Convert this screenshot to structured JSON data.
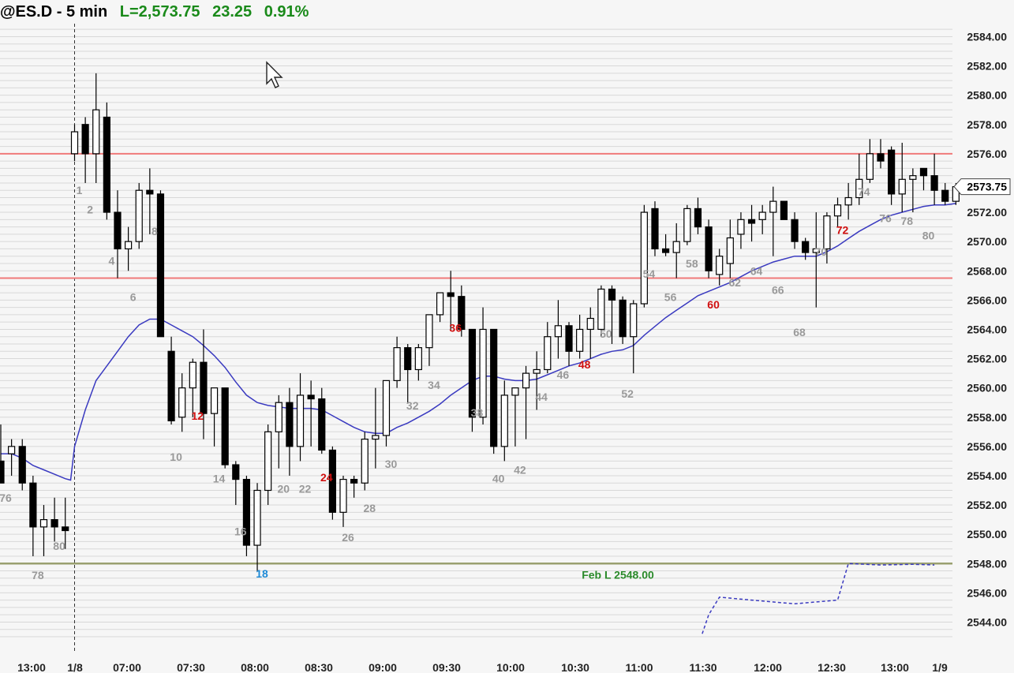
{
  "header": {
    "symbol_label": "@ES.D - 5 min",
    "last_label": "L=2,573.75",
    "change": "23.25",
    "change_pct": "0.91%"
  },
  "colors": {
    "background": "#f6f6f6",
    "grid": "#d8d8d8",
    "bull_fill": "#ffffff",
    "bear_fill": "#000000",
    "ema": "#3a3ac0",
    "resistance": "#f07a7a",
    "support": "#9aa070",
    "label_gray": "#999999",
    "label_red": "#d01010",
    "label_blue": "#1e8ad6",
    "header_green": "#1a8a1a",
    "support_text": "#2a8a2a"
  },
  "icons": {
    "cursor": "mouse-pointer-icon"
  },
  "chart_data": {
    "type": "candlestick",
    "ylim": [
      2542.5,
      2586.0
    ],
    "y_ticks": [
      "2584.00",
      "2582.00",
      "2580.00",
      "2578.00",
      "2576.00",
      "2574.00",
      "2572.00",
      "2570.00",
      "2568.00",
      "2566.00",
      "2564.00",
      "2562.00",
      "2560.00",
      "2558.00",
      "2556.00",
      "2554.00",
      "2552.00",
      "2550.00",
      "2548.00",
      "2546.00",
      "2544.00"
    ],
    "x_ticks": [
      "13:00",
      "1/8",
      "07:00",
      "07:30",
      "08:00",
      "08:30",
      "09:00",
      "09:30",
      "10:00",
      "10:30",
      "11:00",
      "11:30",
      "12:00",
      "12:30",
      "13:00",
      "1/9"
    ],
    "last_price_label": "2573.75",
    "prev_day_candles": [
      {
        "o": 2555.0,
        "h": 2557.5,
        "l": 2553.5,
        "c": 2553.5
      },
      {
        "o": 2555.5,
        "h": 2556.5,
        "l": 2554.0,
        "c": 2556.0
      },
      {
        "o": 2556.0,
        "h": 2556.5,
        "l": 2553.0,
        "c": 2553.5
      },
      {
        "o": 2553.5,
        "h": 2554.0,
        "l": 2548.5,
        "c": 2550.5
      },
      {
        "o": 2550.5,
        "h": 2552.0,
        "l": 2548.5,
        "c": 2551.0
      },
      {
        "o": 2551.0,
        "h": 2552.5,
        "l": 2549.5,
        "c": 2550.5
      },
      {
        "o": 2550.5,
        "h": 2552.5,
        "l": 2549.0,
        "c": 2550.25
      }
    ],
    "candles": [
      {
        "o": 2576.0,
        "h": 2578.0,
        "l": 2575.5,
        "c": 2577.5
      },
      {
        "o": 2578.0,
        "h": 2578.5,
        "l": 2574.0,
        "c": 2576.0
      },
      {
        "o": 2576.0,
        "h": 2581.5,
        "l": 2574.0,
        "c": 2579.0
      },
      {
        "o": 2578.5,
        "h": 2579.5,
        "l": 2571.5,
        "c": 2572.0
      },
      {
        "o": 2572.0,
        "h": 2573.5,
        "l": 2567.5,
        "c": 2569.5
      },
      {
        "o": 2569.5,
        "h": 2571.0,
        "l": 2568.0,
        "c": 2570.0
      },
      {
        "o": 2570.0,
        "h": 2574.0,
        "l": 2569.5,
        "c": 2573.5
      },
      {
        "o": 2573.5,
        "h": 2575.0,
        "l": 2570.5,
        "c": 2573.25
      },
      {
        "o": 2573.25,
        "h": 2573.5,
        "l": 2563.5,
        "c": 2563.5
      },
      {
        "o": 2562.5,
        "h": 2563.5,
        "l": 2557.5,
        "c": 2557.75
      },
      {
        "o": 2558.0,
        "h": 2561.0,
        "l": 2557.0,
        "c": 2560.0
      },
      {
        "o": 2560.0,
        "h": 2562.0,
        "l": 2558.0,
        "c": 2561.75
      },
      {
        "o": 2561.75,
        "h": 2564.0,
        "l": 2556.5,
        "c": 2558.25
      },
      {
        "o": 2558.25,
        "h": 2560.0,
        "l": 2556.0,
        "c": 2560.0
      },
      {
        "o": 2560.0,
        "h": 2560.0,
        "l": 2554.5,
        "c": 2554.75
      },
      {
        "o": 2554.75,
        "h": 2555.0,
        "l": 2552.0,
        "c": 2553.75
      },
      {
        "o": 2553.75,
        "h": 2554.0,
        "l": 2548.5,
        "c": 2549.25
      },
      {
        "o": 2549.25,
        "h": 2553.5,
        "l": 2547.5,
        "c": 2553.0
      },
      {
        "o": 2553.0,
        "h": 2557.5,
        "l": 2552.0,
        "c": 2557.0
      },
      {
        "o": 2557.0,
        "h": 2559.5,
        "l": 2554.5,
        "c": 2559.0
      },
      {
        "o": 2559.0,
        "h": 2560.0,
        "l": 2554.0,
        "c": 2556.0
      },
      {
        "o": 2556.0,
        "h": 2561.0,
        "l": 2555.0,
        "c": 2559.5
      },
      {
        "o": 2559.5,
        "h": 2560.5,
        "l": 2556.0,
        "c": 2559.25
      },
      {
        "o": 2559.25,
        "h": 2560.0,
        "l": 2555.5,
        "c": 2555.75
      },
      {
        "o": 2555.75,
        "h": 2556.0,
        "l": 2551.0,
        "c": 2551.5
      },
      {
        "o": 2551.5,
        "h": 2554.0,
        "l": 2550.5,
        "c": 2553.75
      },
      {
        "o": 2553.75,
        "h": 2554.0,
        "l": 2552.5,
        "c": 2553.5
      },
      {
        "o": 2553.5,
        "h": 2557.0,
        "l": 2553.0,
        "c": 2556.5
      },
      {
        "o": 2556.5,
        "h": 2560.0,
        "l": 2554.5,
        "c": 2556.75
      },
      {
        "o": 2556.75,
        "h": 2560.5,
        "l": 2556.0,
        "c": 2560.5
      },
      {
        "o": 2560.5,
        "h": 2563.5,
        "l": 2560.0,
        "c": 2562.75
      },
      {
        "o": 2562.75,
        "h": 2563.0,
        "l": 2559.0,
        "c": 2561.25
      },
      {
        "o": 2561.25,
        "h": 2563.0,
        "l": 2560.5,
        "c": 2562.75
      },
      {
        "o": 2562.75,
        "h": 2565.0,
        "l": 2561.5,
        "c": 2565.0
      },
      {
        "o": 2565.0,
        "h": 2566.5,
        "l": 2564.5,
        "c": 2566.5
      },
      {
        "o": 2566.5,
        "h": 2568.0,
        "l": 2564.0,
        "c": 2566.25
      },
      {
        "o": 2566.25,
        "h": 2567.0,
        "l": 2563.5,
        "c": 2564.0
      },
      {
        "o": 2564.0,
        "h": 2564.0,
        "l": 2557.0,
        "c": 2558.0
      },
      {
        "o": 2558.0,
        "h": 2565.5,
        "l": 2557.5,
        "c": 2564.0
      },
      {
        "o": 2564.0,
        "h": 2564.0,
        "l": 2555.5,
        "c": 2556.0
      },
      {
        "o": 2556.0,
        "h": 2560.5,
        "l": 2555.0,
        "c": 2559.5
      },
      {
        "o": 2559.5,
        "h": 2560.0,
        "l": 2556.0,
        "c": 2560.0
      },
      {
        "o": 2560.0,
        "h": 2561.5,
        "l": 2556.5,
        "c": 2561.0
      },
      {
        "o": 2561.0,
        "h": 2562.5,
        "l": 2558.5,
        "c": 2561.25
      },
      {
        "o": 2561.25,
        "h": 2564.5,
        "l": 2561.0,
        "c": 2563.5
      },
      {
        "o": 2563.5,
        "h": 2566.0,
        "l": 2562.0,
        "c": 2564.25
      },
      {
        "o": 2564.25,
        "h": 2564.5,
        "l": 2561.5,
        "c": 2562.5
      },
      {
        "o": 2562.5,
        "h": 2565.0,
        "l": 2562.0,
        "c": 2564.0
      },
      {
        "o": 2564.0,
        "h": 2565.5,
        "l": 2562.0,
        "c": 2564.75
      },
      {
        "o": 2564.0,
        "h": 2567.0,
        "l": 2563.5,
        "c": 2566.75
      },
      {
        "o": 2566.75,
        "h": 2567.0,
        "l": 2563.0,
        "c": 2566.0
      },
      {
        "o": 2566.0,
        "h": 2566.25,
        "l": 2563.0,
        "c": 2563.5
      },
      {
        "o": 2563.5,
        "h": 2566.0,
        "l": 2561.0,
        "c": 2565.75
      },
      {
        "o": 2565.75,
        "h": 2572.5,
        "l": 2565.5,
        "c": 2572.0
      },
      {
        "o": 2572.25,
        "h": 2572.75,
        "l": 2569.0,
        "c": 2569.5
      },
      {
        "o": 2569.5,
        "h": 2570.5,
        "l": 2569.0,
        "c": 2569.25
      },
      {
        "o": 2569.25,
        "h": 2571.25,
        "l": 2567.5,
        "c": 2570.0
      },
      {
        "o": 2570.0,
        "h": 2572.5,
        "l": 2569.75,
        "c": 2572.25
      },
      {
        "o": 2572.25,
        "h": 2573.0,
        "l": 2570.5,
        "c": 2571.0
      },
      {
        "o": 2571.0,
        "h": 2571.5,
        "l": 2567.5,
        "c": 2568.0
      },
      {
        "o": 2567.75,
        "h": 2569.5,
        "l": 2567.0,
        "c": 2569.0
      },
      {
        "o": 2568.5,
        "h": 2571.5,
        "l": 2567.5,
        "c": 2570.25
      },
      {
        "o": 2570.5,
        "h": 2572.0,
        "l": 2569.5,
        "c": 2571.5
      },
      {
        "o": 2571.5,
        "h": 2572.5,
        "l": 2570.0,
        "c": 2571.25
      },
      {
        "o": 2571.5,
        "h": 2572.5,
        "l": 2570.5,
        "c": 2572.0
      },
      {
        "o": 2572.0,
        "h": 2573.75,
        "l": 2569.0,
        "c": 2572.75
      },
      {
        "o": 2572.75,
        "h": 2572.75,
        "l": 2571.5,
        "c": 2571.5
      },
      {
        "o": 2571.5,
        "h": 2572.0,
        "l": 2569.5,
        "c": 2570.0
      },
      {
        "o": 2570.0,
        "h": 2570.25,
        "l": 2568.75,
        "c": 2569.25
      },
      {
        "o": 2569.25,
        "h": 2572.0,
        "l": 2565.5,
        "c": 2569.5
      },
      {
        "o": 2569.5,
        "h": 2572.0,
        "l": 2568.5,
        "c": 2571.75
      },
      {
        "o": 2571.75,
        "h": 2573.0,
        "l": 2571.0,
        "c": 2572.5
      },
      {
        "o": 2572.5,
        "h": 2574.0,
        "l": 2571.5,
        "c": 2573.0
      },
      {
        "o": 2573.0,
        "h": 2576.0,
        "l": 2572.5,
        "c": 2574.25
      },
      {
        "o": 2574.25,
        "h": 2577.0,
        "l": 2574.0,
        "c": 2576.0
      },
      {
        "o": 2576.0,
        "h": 2577.0,
        "l": 2575.0,
        "c": 2575.5
      },
      {
        "o": 2576.25,
        "h": 2576.5,
        "l": 2572.5,
        "c": 2573.25
      },
      {
        "o": 2573.25,
        "h": 2576.75,
        "l": 2572.0,
        "c": 2574.25
      },
      {
        "o": 2574.25,
        "h": 2575.0,
        "l": 2572.0,
        "c": 2574.5
      },
      {
        "o": 2575.0,
        "h": 2575.0,
        "l": 2573.5,
        "c": 2574.5
      },
      {
        "o": 2574.5,
        "h": 2576.0,
        "l": 2572.5,
        "c": 2573.5
      },
      {
        "o": 2573.5,
        "h": 2574.0,
        "l": 2572.5,
        "c": 2572.75
      },
      {
        "o": 2572.75,
        "h": 2574.0,
        "l": 2572.5,
        "c": 2573.75
      }
    ],
    "ema_prev": [
      2555.5,
      2555.5,
      2555.2,
      2554.7,
      2554.4,
      2554.1,
      2553.8
    ],
    "ema": [
      2556.0,
      2558.5,
      2560.5,
      2561.5,
      2562.5,
      2563.5,
      2564.3,
      2564.7,
      2564.7,
      2564.3,
      2563.9,
      2563.5,
      2562.9,
      2562.2,
      2561.4,
      2560.4,
      2559.5,
      2559.0,
      2558.8,
      2558.7,
      2558.6,
      2558.6,
      2558.6,
      2558.5,
      2558.1,
      2557.7,
      2557.3,
      2557.0,
      2556.9,
      2556.9,
      2557.3,
      2557.6,
      2558.0,
      2558.4,
      2558.9,
      2559.5,
      2560.0,
      2560.5,
      2560.8,
      2560.8,
      2560.6,
      2560.5,
      2560.5,
      2560.6,
      2560.9,
      2561.2,
      2561.5,
      2561.7,
      2562.0,
      2562.3,
      2562.5,
      2562.6,
      2562.9,
      2563.6,
      2564.2,
      2564.8,
      2565.3,
      2565.8,
      2566.3,
      2566.6,
      2566.9,
      2567.2,
      2567.6,
      2568.0,
      2568.3,
      2568.6,
      2568.8,
      2569.0,
      2569.0,
      2569.0,
      2569.3,
      2569.7,
      2570.2,
      2570.7,
      2571.1,
      2571.5,
      2571.8,
      2572.0,
      2572.2,
      2572.4,
      2572.5,
      2572.5,
      2572.6
    ],
    "labels_gray": [
      {
        "text": "76",
        "i": -7,
        "y": 2552.5
      },
      {
        "text": "78",
        "i": -4,
        "y": 2547.2
      },
      {
        "text": "80",
        "i": -2,
        "y": 2549.2
      },
      {
        "text": "1",
        "i": 0,
        "y": 2573.5
      },
      {
        "text": "2",
        "i": 1,
        "y": 2572.2
      },
      {
        "text": "4",
        "i": 3,
        "y": 2568.7
      },
      {
        "text": "6",
        "i": 5,
        "y": 2566.2
      },
      {
        "text": "8",
        "i": 7,
        "y": 2570.7
      },
      {
        "text": "10",
        "i": 9,
        "y": 2555.3
      },
      {
        "text": "14",
        "i": 13,
        "y": 2553.8
      },
      {
        "text": "16",
        "i": 15,
        "y": 2550.2
      },
      {
        "text": "20",
        "i": 19,
        "y": 2553.1
      },
      {
        "text": "22",
        "i": 21,
        "y": 2553.1
      },
      {
        "text": "26",
        "i": 25,
        "y": 2549.8
      },
      {
        "text": "28",
        "i": 27,
        "y": 2551.8
      },
      {
        "text": "30",
        "i": 29,
        "y": 2554.8
      },
      {
        "text": "32",
        "i": 31,
        "y": 2558.8
      },
      {
        "text": "34",
        "i": 33,
        "y": 2560.2
      },
      {
        "text": "38",
        "i": 37,
        "y": 2558.3
      },
      {
        "text": "40",
        "i": 39,
        "y": 2553.8
      },
      {
        "text": "42",
        "i": 41,
        "y": 2554.4
      },
      {
        "text": "44",
        "i": 43,
        "y": 2559.4
      },
      {
        "text": "46",
        "i": 45,
        "y": 2560.9
      },
      {
        "text": "50",
        "i": 49,
        "y": 2563.7
      },
      {
        "text": "52",
        "i": 51,
        "y": 2559.6
      },
      {
        "text": "54",
        "i": 53,
        "y": 2567.8
      },
      {
        "text": "56",
        "i": 55,
        "y": 2566.2
      },
      {
        "text": "58",
        "i": 57,
        "y": 2568.5
      },
      {
        "text": "62",
        "i": 61,
        "y": 2567.2
      },
      {
        "text": "64",
        "i": 63,
        "y": 2568.0
      },
      {
        "text": "66",
        "i": 65,
        "y": 2566.7
      },
      {
        "text": "68",
        "i": 67,
        "y": 2563.8
      },
      {
        "text": "70",
        "i": 69,
        "y": 2569.3
      },
      {
        "text": "74",
        "i": 73,
        "y": 2573.4
      },
      {
        "text": "76",
        "i": 75,
        "y": 2571.6
      },
      {
        "text": "78",
        "i": 77,
        "y": 2571.4
      },
      {
        "text": "80",
        "i": 79,
        "y": 2570.4
      }
    ],
    "labels_red": [
      {
        "text": "12",
        "i": 11,
        "y": 2558.1
      },
      {
        "text": "24",
        "i": 23,
        "y": 2553.9
      },
      {
        "text": "36",
        "i": 35,
        "y": 2564.1
      },
      {
        "text": "48",
        "i": 47,
        "y": 2561.6
      },
      {
        "text": "60",
        "i": 59,
        "y": 2565.7
      },
      {
        "text": "72",
        "i": 71,
        "y": 2570.8
      }
    ],
    "labels_blue": [
      {
        "text": "18",
        "i": 17,
        "y": 2547.3
      }
    ],
    "resistance_lines": [
      2576.0,
      2567.5
    ],
    "support_line": 2548.0,
    "support_label": "Feb L 2548.00",
    "dashed_line": [
      [
        2544.5,
        59
      ],
      [
        2545.7,
        60
      ],
      [
        2545.5,
        63
      ],
      [
        2545.25,
        67
      ],
      [
        2545.5,
        71
      ],
      [
        2548.0,
        72
      ],
      [
        2547.9,
        75
      ],
      [
        2547.95,
        78
      ],
      [
        2547.9,
        80
      ]
    ]
  }
}
